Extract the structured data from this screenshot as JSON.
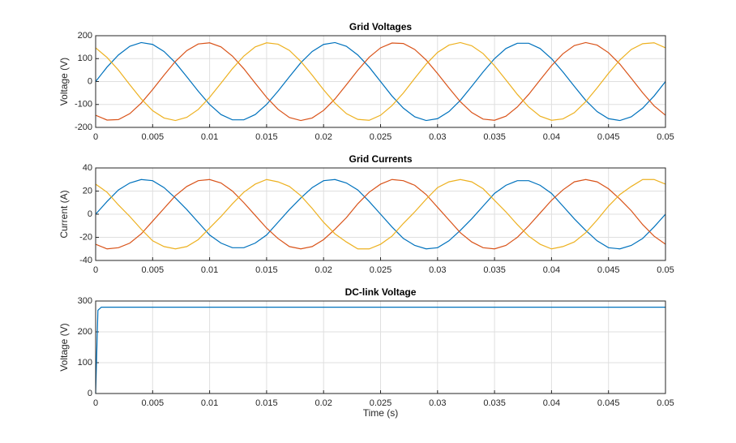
{
  "chart_data": [
    {
      "type": "line",
      "title": "Grid Voltages",
      "y_label": "Voltage (V)",
      "grid": true,
      "x": [
        0,
        0.001,
        0.002,
        0.003,
        0.004,
        0.005,
        0.006,
        0.007,
        0.008,
        0.009,
        0.01,
        0.011,
        0.012,
        0.013,
        0.014,
        0.015,
        0.016,
        0.017,
        0.018,
        0.019,
        0.02,
        0.021,
        0.022,
        0.023,
        0.024,
        0.025,
        0.026,
        0.027,
        0.028,
        0.029,
        0.03,
        0.031,
        0.032,
        0.033,
        0.034,
        0.035,
        0.036,
        0.037,
        0.038,
        0.039,
        0.04,
        0.041,
        0.042,
        0.043,
        0.044,
        0.045,
        0.046,
        0.047,
        0.048,
        0.049,
        0.05
      ],
      "series": [
        {
          "color": "#0072BD",
          "values": [
            0,
            63,
            116,
            154,
            170,
            162,
            131,
            82,
            21,
            -42,
            -100,
            -144,
            -167,
            -167,
            -144,
            -100,
            -42,
            21,
            82,
            131,
            162,
            170,
            154,
            116,
            63,
            0,
            -63,
            -116,
            -154,
            -170,
            -162,
            -131,
            -82,
            -21,
            42,
            100,
            144,
            167,
            167,
            144,
            100,
            42,
            -21,
            -82,
            -131,
            -162,
            -170,
            -154,
            -116,
            -63,
            0
          ]
        },
        {
          "color": "#D95319",
          "values": [
            -147,
            -168,
            -166,
            -140,
            -94,
            -35,
            28,
            88,
            135,
            164,
            169,
            151,
            111,
            56,
            -7,
            -69,
            -121,
            -157,
            -170,
            -159,
            -126,
            -76,
            -14,
            49,
            106,
            147,
            168,
            166,
            140,
            94,
            35,
            -28,
            -88,
            -135,
            -164,
            -169,
            -151,
            -111,
            -56,
            7,
            69,
            121,
            157,
            170,
            159,
            126,
            76,
            14,
            -49,
            -106,
            -147
          ]
        },
        {
          "color": "#EDB120",
          "values": [
            147,
            105,
            50,
            -14,
            -76,
            -127,
            -159,
            -170,
            -156,
            -122,
            -69,
            -7,
            56,
            111,
            151,
            169,
            163,
            136,
            88,
            28,
            -36,
            -94,
            -140,
            -165,
            -169,
            -147,
            -105,
            -50,
            14,
            76,
            127,
            159,
            170,
            156,
            122,
            69,
            7,
            -56,
            -111,
            -151,
            -169,
            -163,
            -136,
            -88,
            -28,
            36,
            94,
            140,
            165,
            169,
            147
          ]
        }
      ],
      "xlim": [
        0,
        0.05
      ],
      "xticks": [
        0,
        0.005,
        0.01,
        0.015,
        0.02,
        0.025,
        0.03,
        0.035,
        0.04,
        0.045,
        0.05
      ],
      "ylim": [
        -200,
        200
      ],
      "yticks": [
        -200,
        -100,
        0,
        100,
        200
      ]
    },
    {
      "type": "line",
      "title": "Grid Currents",
      "y_label": "Current (A)",
      "grid": true,
      "x": [
        0,
        0.001,
        0.002,
        0.003,
        0.004,
        0.005,
        0.006,
        0.007,
        0.008,
        0.009,
        0.01,
        0.011,
        0.012,
        0.013,
        0.014,
        0.015,
        0.016,
        0.017,
        0.018,
        0.019,
        0.02,
        0.021,
        0.022,
        0.023,
        0.024,
        0.025,
        0.026,
        0.027,
        0.028,
        0.029,
        0.03,
        0.031,
        0.032,
        0.033,
        0.034,
        0.035,
        0.036,
        0.037,
        0.038,
        0.039,
        0.04,
        0.041,
        0.042,
        0.043,
        0.044,
        0.045,
        0.046,
        0.047,
        0.048,
        0.049,
        0.05
      ],
      "series": [
        {
          "color": "#0072BD",
          "values": [
            0,
            11,
            21,
            27,
            30,
            29,
            23,
            14,
            4,
            -7,
            -18,
            -25,
            -29,
            -29,
            -25,
            -18,
            -7,
            4,
            14,
            23,
            29,
            30,
            27,
            21,
            11,
            0,
            -11,
            -21,
            -27,
            -30,
            -29,
            -23,
            -14,
            -4,
            7,
            18,
            25,
            29,
            29,
            25,
            18,
            7,
            -4,
            -14,
            -23,
            -29,
            -30,
            -27,
            -21,
            -11,
            0
          ]
        },
        {
          "color": "#D95319",
          "values": [
            -26,
            -30,
            -29,
            -25,
            -17,
            -6,
            5,
            16,
            24,
            29,
            30,
            27,
            20,
            10,
            -1,
            -12,
            -21,
            -28,
            -30,
            -28,
            -22,
            -13,
            -3,
            9,
            19,
            26,
            30,
            29,
            25,
            17,
            6,
            -5,
            -16,
            -24,
            -29,
            -30,
            -27,
            -20,
            -10,
            1,
            12,
            21,
            28,
            30,
            28,
            22,
            13,
            3,
            -9,
            -19,
            -26
          ]
        },
        {
          "color": "#EDB120",
          "values": [
            26,
            19,
            8,
            -2,
            -13,
            -23,
            -28,
            -30,
            -28,
            -22,
            -12,
            -2,
            9,
            19,
            26,
            30,
            28,
            24,
            16,
            5,
            -7,
            -17,
            -24,
            -30,
            -30,
            -26,
            -19,
            -8,
            2,
            13,
            23,
            28,
            30,
            28,
            22,
            12,
            2,
            -9,
            -19,
            -26,
            -30,
            -28,
            -24,
            -16,
            -5,
            7,
            17,
            24,
            30,
            30,
            26
          ]
        }
      ],
      "xlim": [
        0,
        0.05
      ],
      "xticks": [
        0,
        0.005,
        0.01,
        0.015,
        0.02,
        0.025,
        0.03,
        0.035,
        0.04,
        0.045,
        0.05
      ],
      "ylim": [
        -40,
        40
      ],
      "yticks": [
        -40,
        -20,
        0,
        20,
        40
      ]
    },
    {
      "type": "line",
      "title": "DC-link Voltage",
      "y_label": "Voltage (V)",
      "x_label": "Time (s)",
      "grid": true,
      "x": [
        0,
        0.0002,
        0.0005,
        0.05
      ],
      "series": [
        {
          "color": "#0072BD",
          "values": [
            0,
            270,
            280,
            280
          ]
        }
      ],
      "xlim": [
        0,
        0.05
      ],
      "xticks": [
        0,
        0.005,
        0.01,
        0.015,
        0.02,
        0.025,
        0.03,
        0.035,
        0.04,
        0.045,
        0.05
      ],
      "ylim": [
        0,
        300
      ],
      "yticks": [
        0,
        100,
        200,
        300
      ]
    }
  ]
}
